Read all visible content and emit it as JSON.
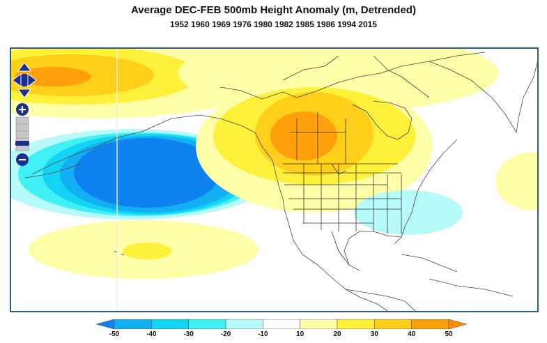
{
  "title": "Average DEC-FEB 500mb Height Anomaly (m, Detrended)",
  "subtitle": "1952 1960 1969 1976 1980 1982 1985 1986 1994 2015",
  "legend": {
    "ticks": [
      "-50",
      "-40",
      "-30",
      "-20",
      "-10",
      "10",
      "20",
      "30",
      "40",
      "50"
    ],
    "colors": [
      "#0d82f0",
      "#12b0f2",
      "#13d4f5",
      "#3ff1f5",
      "#b6fafa",
      "#ffffff",
      "#ffffa8",
      "#fff03a",
      "#ffcf1a",
      "#ffa00a",
      "#ff8c00"
    ]
  },
  "controls": {
    "pan": "pan-arrows",
    "zoom_in": "+",
    "zoom_out": "-"
  },
  "colors": {
    "frame": "#2d5d7b",
    "coast": "#444444",
    "control_blue": "#1a2f8f"
  }
}
